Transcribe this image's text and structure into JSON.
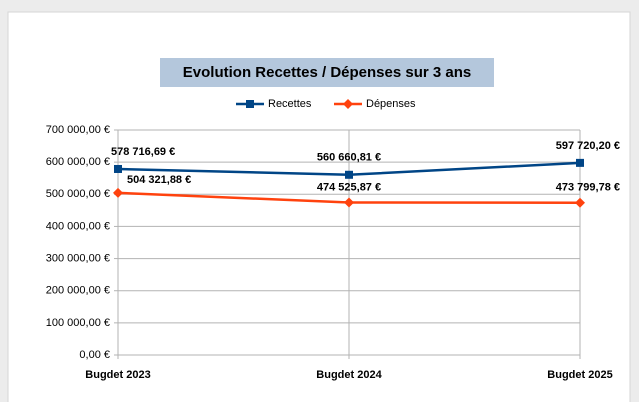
{
  "chart_data": {
    "type": "line",
    "title": "Evolution Recettes / Dépenses sur 3 ans",
    "categories": [
      "Bugdet 2023",
      "Bugdet 2024",
      "Bugdet 2025"
    ],
    "series": [
      {
        "name": "Recettes",
        "color": "#004586",
        "marker": "square",
        "values": [
          578716.69,
          560660.81,
          597720.2
        ],
        "value_labels": [
          "578 716,69 €",
          "560 660,81 €",
          "597 720,20 €"
        ]
      },
      {
        "name": "Dépenses",
        "color": "#ff420e",
        "marker": "diamond",
        "values": [
          504321.88,
          474525.87,
          473799.78
        ],
        "value_labels": [
          "504 321,88 €",
          "474 525,87 €",
          "473 799,78 €"
        ]
      }
    ],
    "ylim": [
      0,
      700000
    ],
    "yticks": [
      {
        "value": 0,
        "label": "0,00 €"
      },
      {
        "value": 100000,
        "label": "100 000,00 €"
      },
      {
        "value": 200000,
        "label": "200 000,00 €"
      },
      {
        "value": 300000,
        "label": "300 000,00 €"
      },
      {
        "value": 400000,
        "label": "400 000,00 €"
      },
      {
        "value": 500000,
        "label": "500 000,00 €"
      },
      {
        "value": 600000,
        "label": "600 000,00 €"
      },
      {
        "value": 700000,
        "label": "700 000,00 €"
      }
    ],
    "grid": true,
    "legend": "top"
  }
}
